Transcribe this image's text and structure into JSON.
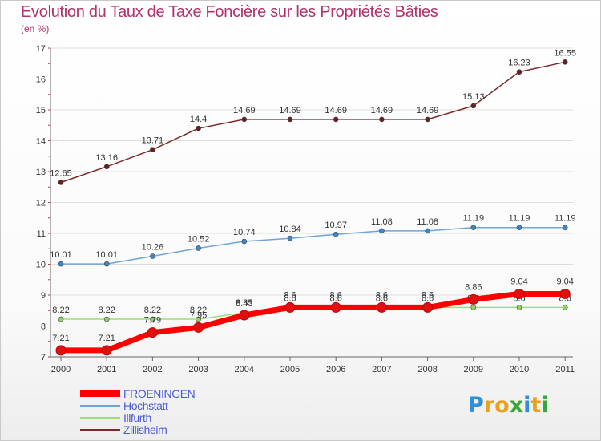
{
  "title": "Evolution du Taux de Taxe Foncière sur les Propriétés Bâties",
  "subtitle": "(en %)",
  "logo": {
    "text": "Proxiti",
    "letters": [
      "P",
      "r",
      "o",
      "x",
      "i",
      "t",
      "i"
    ],
    "colors": [
      "#2f8fd8",
      "#e8a21c",
      "#e8a21c",
      "#3aa63a",
      "#2f8fd8",
      "#e8a21c",
      "#3aa63a"
    ]
  },
  "legend": [
    {
      "name": "FROENINGEN",
      "color": "#ff0000"
    },
    {
      "name": "Hochstatt",
      "color": "#6ea4d6"
    },
    {
      "name": "Illfurth",
      "color": "#9edc7a"
    },
    {
      "name": "Zillisheim",
      "color": "#7a2b2b"
    }
  ],
  "chart_data": {
    "type": "line",
    "title": "Evolution du Taux de Taxe Foncière sur les Propriétés Bâties",
    "ylabel": "(en %)",
    "xlabel": "",
    "categories": [
      "2000",
      "2001",
      "2002",
      "2003",
      "2004",
      "2005",
      "2006",
      "2007",
      "2008",
      "2009",
      "2010",
      "2011"
    ],
    "ylim": [
      7,
      17
    ],
    "yticks": [
      7,
      8,
      9,
      10,
      11,
      12,
      13,
      14,
      15,
      16,
      17
    ],
    "grid": true,
    "legend_position": "bottom-left",
    "series": [
      {
        "name": "Zillisheim",
        "color": "#7a2b2b",
        "marker": "#6b1e1e",
        "width": 1.5,
        "values": [
          12.65,
          13.16,
          13.71,
          14.4,
          14.69,
          14.69,
          14.69,
          14.69,
          14.69,
          15.13,
          16.23,
          16.55
        ],
        "labels": [
          "12.65",
          "13.16",
          "13.71",
          "14.4",
          "14.69",
          "14.69",
          "14.69",
          "14.69",
          "14.69",
          "15.13",
          "16.23",
          "16.55"
        ]
      },
      {
        "name": "Hochstatt",
        "color": "#6ea4d6",
        "marker": "#3f86c8",
        "width": 1.5,
        "values": [
          10.01,
          10.01,
          10.26,
          10.52,
          10.74,
          10.84,
          10.97,
          11.08,
          11.08,
          11.19,
          11.19,
          11.19
        ],
        "labels": [
          "10.01",
          "10.01",
          "10.26",
          "10.52",
          "10.74",
          "10.84",
          "10.97",
          "11.08",
          "11.08",
          "11.19",
          "11.19",
          "11.19"
        ]
      },
      {
        "name": "Illfurth",
        "color": "#9edc7a",
        "marker": "#8fd067",
        "width": 1.5,
        "values": [
          8.22,
          8.22,
          8.22,
          8.22,
          8.43,
          8.6,
          8.6,
          8.6,
          8.6,
          8.6,
          8.6,
          8.6
        ],
        "labels": [
          "8.22",
          "8.22",
          "8.22",
          "8.22",
          "8.43",
          "8.6",
          "8.6",
          "8.6",
          "8.6",
          "8.6",
          "8.6",
          "8.6"
        ]
      },
      {
        "name": "FROENINGEN",
        "color": "#ff0000",
        "marker": "#e01010",
        "width": 7,
        "values": [
          7.21,
          7.21,
          7.79,
          7.95,
          8.35,
          8.6,
          8.6,
          8.6,
          8.6,
          8.86,
          9.04,
          9.04
        ],
        "labels": [
          "7.21",
          "7.21",
          "7.79",
          "7.95",
          "8.35",
          "8.6",
          "8.6",
          "8.6",
          "8.6",
          "8.86",
          "9.04",
          "9.04"
        ]
      }
    ]
  }
}
